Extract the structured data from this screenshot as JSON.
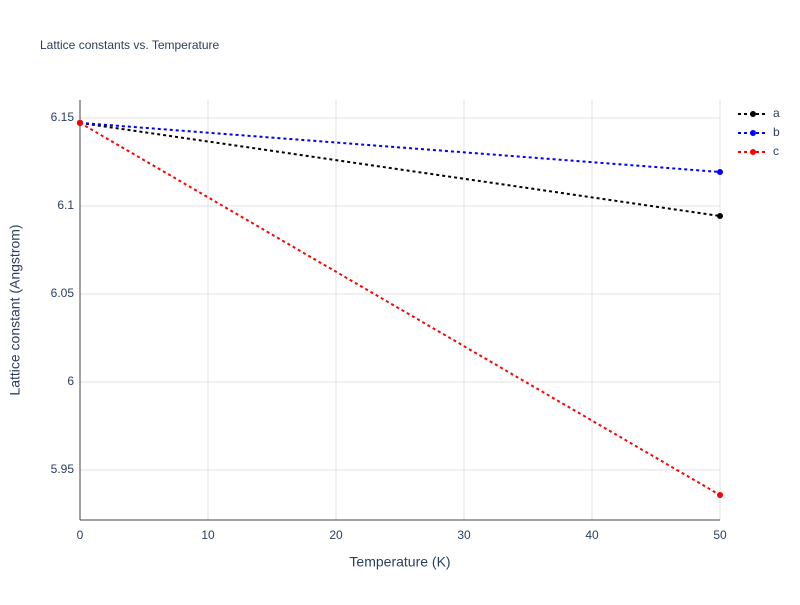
{
  "chart_data": {
    "type": "line",
    "title": "Lattice constants vs. Temperature",
    "x_label": "Temperature (K)",
    "y_label": "Lattice constant (Angstrom)",
    "x": [
      0,
      50
    ],
    "series": [
      {
        "name": "a",
        "color": "#000000",
        "values": [
          6.1472,
          6.0943
        ]
      },
      {
        "name": "b",
        "color": "#0000ff",
        "values": [
          6.1472,
          6.1193
        ]
      },
      {
        "name": "c",
        "color": "#ff0000",
        "values": [
          6.1472,
          5.9358
        ]
      }
    ],
    "xlim": [
      0,
      50
    ],
    "xticks": [
      0,
      10,
      20,
      30,
      40,
      50
    ],
    "ylim": [
      5.9216,
      6.1602
    ],
    "yticks": [
      5.95,
      6,
      6.05,
      6.1,
      6.15
    ],
    "grid": true,
    "legend": "right",
    "dash": "dot"
  }
}
